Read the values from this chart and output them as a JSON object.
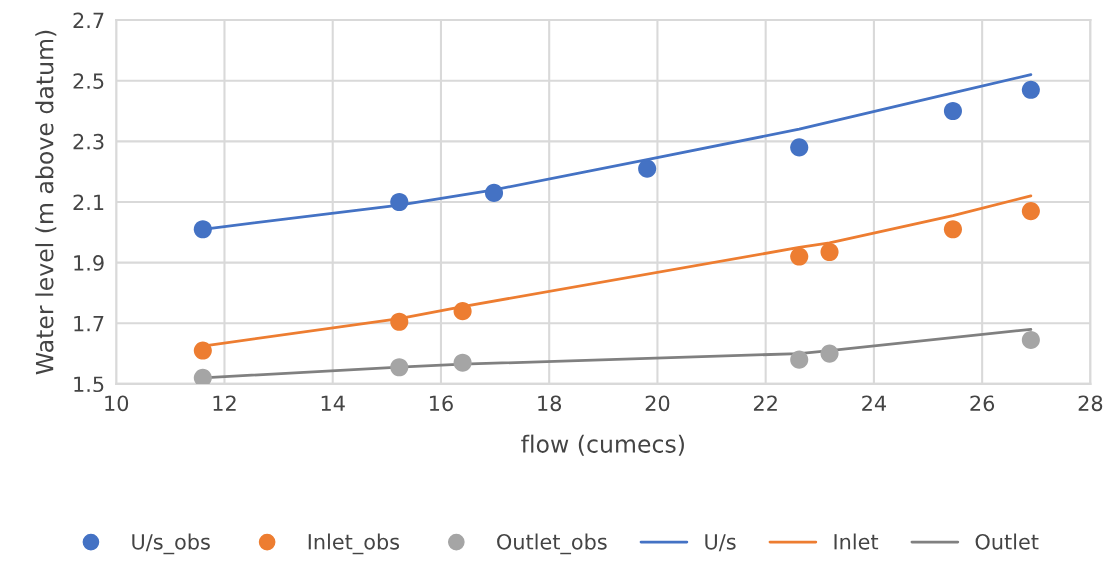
{
  "chart_data": {
    "type": "scatter",
    "xlabel": "flow (cumecs)",
    "ylabel": "Water level (m above datum)",
    "xlim": [
      10,
      28
    ],
    "xticks": [
      10,
      12,
      14,
      16,
      18,
      20,
      22,
      24,
      26,
      28
    ],
    "ylim": [
      1.5,
      2.7
    ],
    "yticks": [
      1.5,
      1.7,
      1.9,
      2.1,
      2.3,
      2.5,
      2.7
    ],
    "grid": true,
    "legend": "bottom",
    "series": [
      {
        "name": "U/s_obs",
        "marker": "circle",
        "color": "#4472c4",
        "x": [
          11.6,
          15.23,
          16.98,
          19.81,
          22.62,
          25.46,
          26.9
        ],
        "values": [
          2.01,
          2.1,
          2.13,
          2.21,
          2.28,
          2.4,
          2.47
        ]
      },
      {
        "name": "Inlet_obs",
        "marker": "circle",
        "color": "#ed7d31",
        "x": [
          11.6,
          15.23,
          16.4,
          22.62,
          23.18,
          25.46,
          26.9
        ],
        "values": [
          1.61,
          1.705,
          1.74,
          1.92,
          1.935,
          2.01,
          2.07
        ]
      },
      {
        "name": "Outlet_obs",
        "marker": "circle",
        "color": "#a5a5a5",
        "x": [
          11.6,
          15.23,
          16.4,
          22.62,
          23.18,
          26.9
        ],
        "values": [
          1.52,
          1.555,
          1.57,
          1.58,
          1.6,
          1.645
        ]
      },
      {
        "name": "U/s",
        "type": "line",
        "line_style": "solid",
        "color": "#4472c4",
        "x": [
          11.6,
          15.23,
          16.98,
          19.81,
          22.62,
          25.46,
          26.9
        ],
        "values": [
          2.01,
          2.09,
          2.14,
          2.24,
          2.34,
          2.46,
          2.52
        ]
      },
      {
        "name": "Inlet",
        "type": "line",
        "line_style": "solid",
        "color": "#ed7d31",
        "x": [
          11.6,
          15.23,
          16.4,
          22.62,
          23.18,
          25.46,
          26.9
        ],
        "values": [
          1.625,
          1.715,
          1.755,
          1.95,
          1.965,
          2.055,
          2.12
        ]
      },
      {
        "name": "Outlet",
        "type": "line",
        "line_style": "solid",
        "color": "#808080",
        "x": [
          11.6,
          15.23,
          16.4,
          22.62,
          23.18,
          26.9
        ],
        "values": [
          1.52,
          1.555,
          1.565,
          1.6,
          1.61,
          1.68
        ]
      }
    ]
  }
}
